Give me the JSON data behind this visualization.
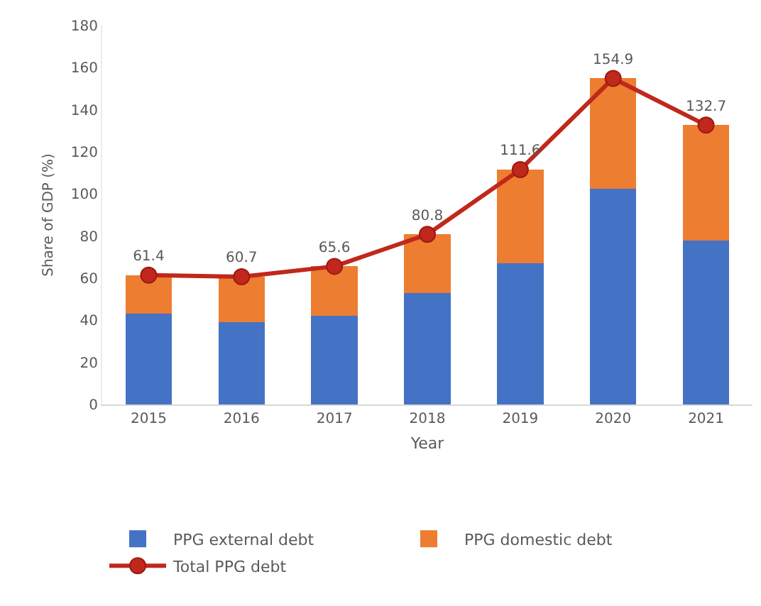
{
  "chart_data": {
    "type": "bar",
    "stacked": true,
    "xlabel": "Year",
    "ylabel": "Share of GDP (%)",
    "categories": [
      "2015",
      "2016",
      "2017",
      "2018",
      "2019",
      "2020",
      "2021"
    ],
    "series": [
      {
        "name": "PPG external debt",
        "type": "bar",
        "color": "#4472c4",
        "values": [
          43,
          39,
          42,
          53,
          67,
          102.6,
          78
        ]
      },
      {
        "name": "PPG domestic debt",
        "type": "bar",
        "color": "#ed7d31",
        "values": [
          18.4,
          21.7,
          23.6,
          27.8,
          44.6,
          52.3,
          54.7
        ]
      },
      {
        "name": "Total PPG debt",
        "type": "line",
        "color": "#c0281b",
        "marker": "circle",
        "values": [
          61.4,
          60.7,
          65.6,
          80.8,
          111.6,
          154.9,
          132.7
        ],
        "value_labels": [
          "61.4",
          "60.7",
          "65.6",
          "80.8",
          "111.6",
          "154.9",
          "132.7"
        ]
      }
    ],
    "ylim": [
      0,
      180
    ],
    "yticks": [
      0,
      20,
      40,
      60,
      80,
      100,
      120,
      140,
      160,
      180
    ],
    "legend": "bottom"
  }
}
